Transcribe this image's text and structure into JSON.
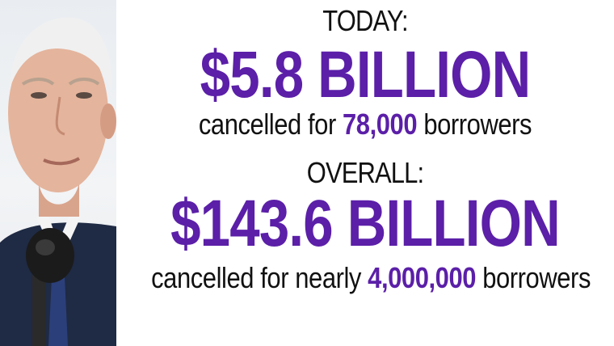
{
  "today": {
    "heading": "TODAY:",
    "amount": "$5.8 BILLION",
    "prefix": "cancelled for",
    "count": "78,000",
    "suffix": "borrowers"
  },
  "overall": {
    "heading": "OVERALL:",
    "amount": "$143.6 BILLION",
    "prefix": "cancelled for nearly",
    "count": "4,000,000",
    "suffix": "borrowers"
  },
  "colors": {
    "accent": "#5b1fa8",
    "text": "#111111",
    "background": "#ffffff"
  },
  "photo": {
    "icon": "person-at-microphone-photo"
  }
}
